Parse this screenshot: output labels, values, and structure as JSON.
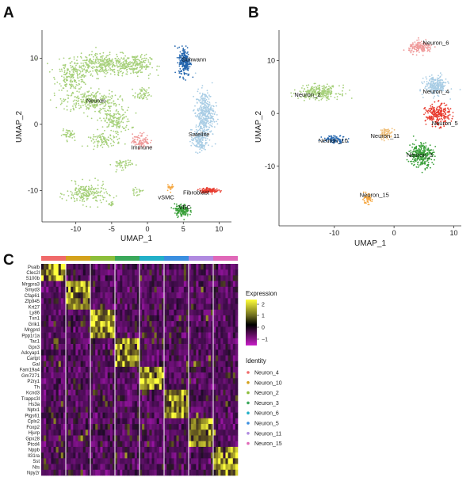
{
  "panels": {
    "a": "A",
    "b": "B",
    "c": "C"
  },
  "chart_data": [
    {
      "type": "scatter",
      "panel": "A",
      "xlabel": "UMAP_1",
      "ylabel": "UMAP_2",
      "xlim": [
        -14.5,
        11.5
      ],
      "ylim": [
        -14.5,
        14
      ],
      "xticks": [
        -10,
        -5,
        0,
        5,
        10
      ],
      "yticks": [
        -10,
        0,
        10
      ],
      "clusters": [
        {
          "name": "Neuron",
          "color": "#a6d07a",
          "label_x": -7.2,
          "label_y": 3.3,
          "blobs": [
            [
              -6,
              9,
              5.5,
              1.6,
              420
            ],
            [
              -10.5,
              7,
              2.2,
              1.8,
              160
            ],
            [
              -8,
              3.5,
              3.8,
              1.6,
              260
            ],
            [
              -4.5,
              0.5,
              2.2,
              2,
              160
            ],
            [
              -11,
              -1.5,
              0.9,
              0.7,
              40
            ],
            [
              -6,
              -2.5,
              2.2,
              0.9,
              90
            ],
            [
              -3.5,
              -6,
              1.4,
              0.8,
              50
            ],
            [
              -8.5,
              -10.5,
              2.8,
              1.6,
              200
            ],
            [
              -1.5,
              -10.2,
              0.8,
              0.5,
              20
            ],
            [
              -5,
              -12,
              0.6,
              0.4,
              15
            ],
            [
              -1.5,
              9,
              2,
              1.5,
              130
            ],
            [
              -0.8,
              4.5,
              1,
              1,
              50
            ]
          ]
        },
        {
          "name": "Schwann",
          "color": "#2466ae",
          "label_x": 6.5,
          "label_y": 9.5,
          "blobs": [
            [
              5.2,
              9.5,
              0.8,
              2.2,
              220
            ]
          ]
        },
        {
          "name": "Satellite",
          "color": "#a9cde5",
          "label_x": 7.2,
          "label_y": -1.8,
          "blobs": [
            [
              8,
              1.5,
              1.3,
              3.5,
              380
            ],
            [
              7.2,
              -2.5,
              1.1,
              1.6,
              140
            ]
          ]
        },
        {
          "name": "Immune",
          "color": "#ef9a9a",
          "label_x": -0.8,
          "label_y": -3.8,
          "blobs": [
            [
              -0.9,
              -2.5,
              1.2,
              1.1,
              90
            ]
          ]
        },
        {
          "name": "vSMC",
          "color": "#f5a742",
          "label_x": 2.6,
          "label_y": -11.3,
          "blobs": [
            [
              3.2,
              -9.5,
              0.5,
              0.5,
              25
            ]
          ]
        },
        {
          "name": "Fibroblast",
          "color": "#e83b2e",
          "label_x": 6.8,
          "label_y": -10.6,
          "blobs": [
            [
              8.6,
              -10,
              1.3,
              0.35,
              120
            ]
          ]
        },
        {
          "name": "VEC",
          "color": "#3aa03a",
          "label_x": 5.2,
          "label_y": -12.8,
          "blobs": [
            [
              4.8,
              -13,
              1,
              0.9,
              150
            ]
          ]
        }
      ]
    },
    {
      "type": "scatter",
      "panel": "B",
      "xlabel": "UMAP_1",
      "ylabel": "UMAP_2",
      "xlim": [
        -19,
        11
      ],
      "ylim": [
        -21,
        15.5
      ],
      "xticks": [
        -10,
        0,
        10
      ],
      "yticks": [
        -10,
        0,
        10
      ],
      "clusters": [
        {
          "name": "Neuron_6",
          "color": "#ef9a9a",
          "label_x": 7,
          "label_y": 13,
          "blobs": [
            [
              4.5,
              12.5,
              2,
              1.1,
              160
            ]
          ]
        },
        {
          "name": "Neuron_2",
          "color": "#a6d07a",
          "label_x": -14.5,
          "label_y": 3.2,
          "blobs": [
            [
              -12.5,
              4,
              3.4,
              1.3,
              260
            ]
          ]
        },
        {
          "name": "Neuron_4",
          "color": "#a9cde5",
          "label_x": 7,
          "label_y": 3.8,
          "blobs": [
            [
              7,
              5.3,
              1.9,
              1.7,
              240
            ]
          ]
        },
        {
          "name": "Neuron_5",
          "color": "#e83b2e",
          "label_x": 8.5,
          "label_y": -2.2,
          "blobs": [
            [
              7.3,
              -0.3,
              2,
              2,
              240
            ]
          ]
        },
        {
          "name": "Neuron_10",
          "color": "#2466ae",
          "label_x": -10.2,
          "label_y": -5.5,
          "blobs": [
            [
              -10,
              -4.9,
              2,
              0.7,
              90
            ]
          ]
        },
        {
          "name": "Neuron_11",
          "color": "#f0c07a",
          "label_x": -1.5,
          "label_y": -4.6,
          "blobs": [
            [
              -1.3,
              -3.8,
              1.1,
              1,
              70
            ]
          ]
        },
        {
          "name": "Neuron_3",
          "color": "#3aa03a",
          "label_x": 4.3,
          "label_y": -8.2,
          "blobs": [
            [
              4.5,
              -7.8,
              2,
              2.3,
              300
            ]
          ]
        },
        {
          "name": "Neuron_15",
          "color": "#f5a742",
          "label_x": -3.3,
          "label_y": -15.8,
          "blobs": [
            [
              -4.5,
              -16.2,
              0.8,
              0.9,
              60
            ]
          ]
        }
      ]
    },
    {
      "type": "heatmap",
      "panel": "C",
      "genes": [
        "Pvalb",
        "Clec2l",
        "S100b",
        "Mrgpra3",
        "Smyd3",
        "Cfap61",
        "Zfp945",
        "Krt27",
        "Ly86",
        "Txn1",
        "Grik1",
        "Mrgprd",
        "Ppp1r1a",
        "Tac1",
        "Gpx3",
        "Adcyap1",
        "Cartpt",
        "Gal",
        "Fam19a4",
        "Gm7271",
        "P2ry1",
        "Th",
        "Kcnd3",
        "Trappc3l",
        "Hs3a",
        "Nptx1",
        "Ptgs61",
        "Cplx2",
        "Foxp2",
        "Hjurp",
        "Gpx28",
        "Ptcd4",
        "Nppb",
        "Il31ra",
        "Sst",
        "Nts",
        "Npy2r"
      ],
      "group_colors": [
        "#f06a6a",
        "#d4a21c",
        "#8cbe3a",
        "#3aa85a",
        "#22b0c8",
        "#3a8fe0",
        "#b08ae0",
        "#e068b8"
      ],
      "gene_groups": [
        0,
        0,
        0,
        1,
        1,
        1,
        1,
        1,
        2,
        2,
        2,
        2,
        2,
        3,
        3,
        3,
        3,
        3,
        4,
        4,
        4,
        4,
        5,
        5,
        5,
        5,
        5,
        6,
        6,
        6,
        6,
        6,
        7,
        7,
        7,
        7,
        7
      ],
      "legend": {
        "expression_title": "Expression",
        "expression_ticks": [
          "2",
          "1",
          "0",
          "−1"
        ],
        "identity_title": "Identity",
        "identities": [
          {
            "name": "Neuron_4",
            "color": "#f06a6a"
          },
          {
            "name": "Neuron_10",
            "color": "#d4a21c"
          },
          {
            "name": "Neuron_2",
            "color": "#8cbe3a"
          },
          {
            "name": "Neuron_3",
            "color": "#3aa85a"
          },
          {
            "name": "Neuron_6",
            "color": "#22b0c8"
          },
          {
            "name": "Neuron_5",
            "color": "#3a8fe0"
          },
          {
            "name": "Neuron_11",
            "color": "#b08ae0"
          },
          {
            "name": "Neuron_15",
            "color": "#e068b8"
          }
        ]
      }
    }
  ]
}
